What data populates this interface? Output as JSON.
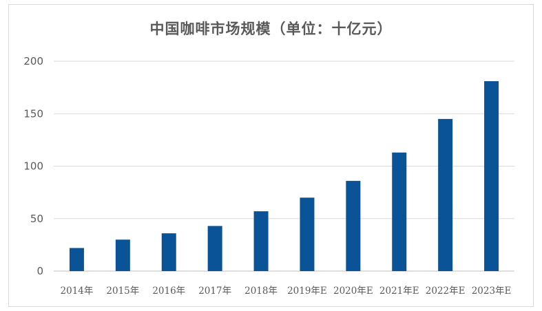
{
  "chart_data": {
    "type": "bar",
    "title": "中国咖啡市场规模（单位：十亿元）",
    "categories": [
      "2014年",
      "2015年",
      "2016年",
      "2017年",
      "2018年",
      "2019年E",
      "2020年E",
      "2021年E",
      "2022年E",
      "2023年E"
    ],
    "values": [
      22,
      30,
      36,
      43,
      57,
      70,
      86,
      113,
      145,
      181
    ],
    "ylim": [
      0,
      200
    ],
    "yticks": [
      "0",
      "50",
      "100",
      "150",
      "200"
    ],
    "grid": true,
    "legend": "none",
    "bar_color": "#0a5396",
    "grid_color": "#d9d9d9",
    "axis_color": "#bfbfbf"
  }
}
